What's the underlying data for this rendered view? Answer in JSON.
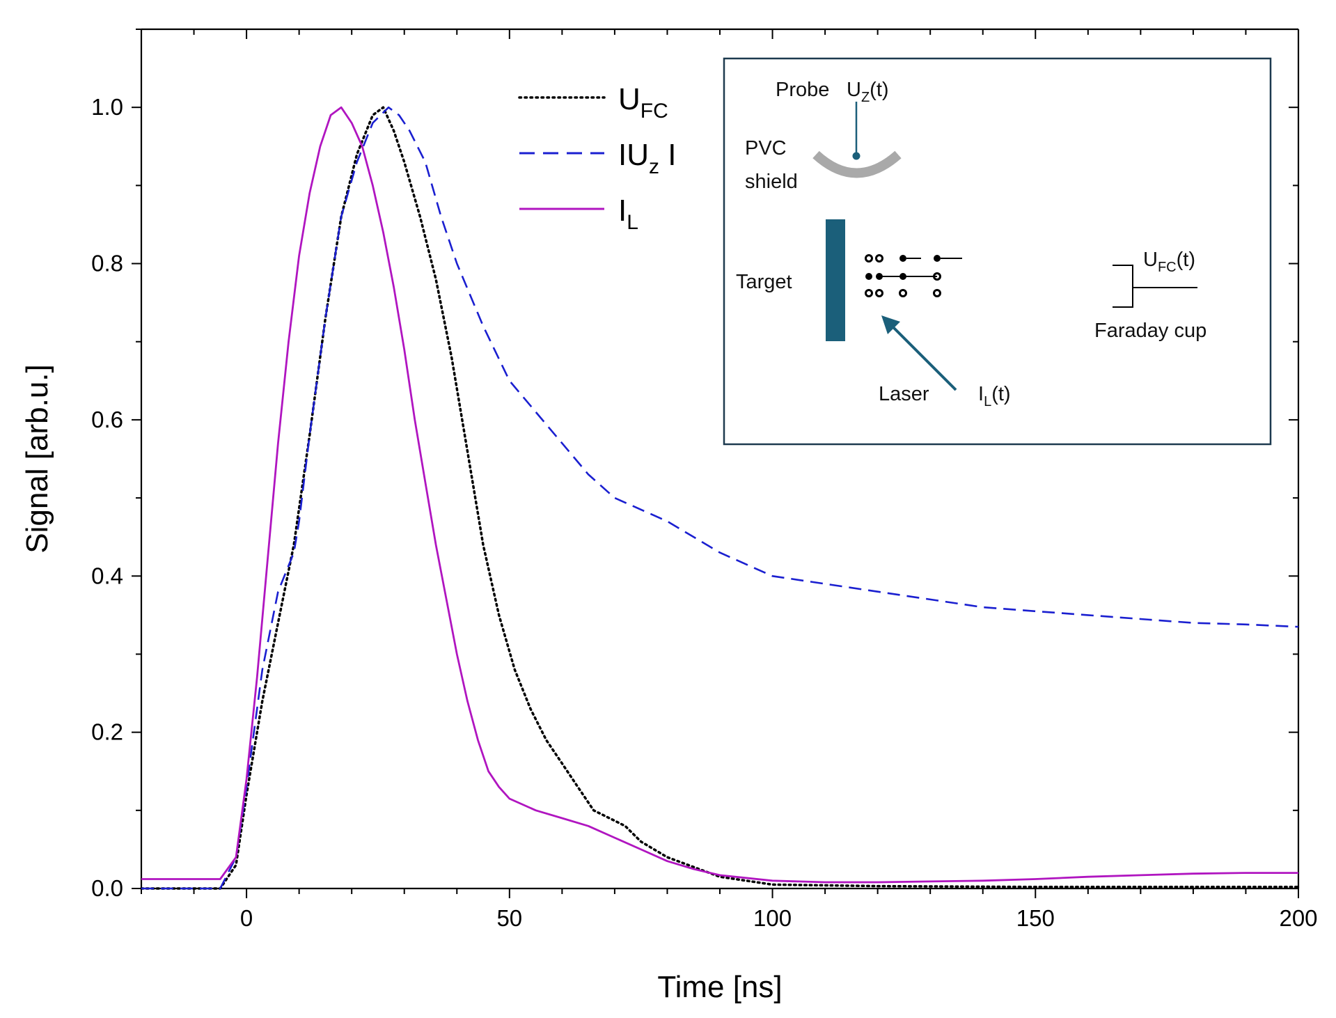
{
  "chart_data": {
    "type": "line",
    "title": "",
    "xlabel": "Time [ns]",
    "ylabel": "Signal [arb.u.]",
    "xlim": [
      -20,
      200
    ],
    "ylim": [
      0,
      1.1
    ],
    "x_ticks": [
      "0",
      "50",
      "100",
      "150",
      "200"
    ],
    "y_ticks": [
      "0.0",
      "0.2",
      "0.4",
      "0.6",
      "0.8",
      "1.0"
    ],
    "legend_position": "top-center",
    "series": [
      {
        "name": "U_FC",
        "legend": {
          "main": "U",
          "sub": "FC",
          "tail": ""
        },
        "style": "dotted",
        "color": "#000000",
        "x": [
          -20,
          -5,
          -2,
          0,
          3,
          6,
          9,
          12,
          15,
          18,
          21,
          24,
          26,
          28,
          30,
          33,
          36,
          39,
          42,
          45,
          48,
          51,
          54,
          57,
          60,
          63,
          66,
          69,
          72,
          75,
          80,
          90,
          100,
          120,
          150,
          200
        ],
        "y": [
          0.0,
          0.0,
          0.03,
          0.12,
          0.24,
          0.34,
          0.44,
          0.58,
          0.73,
          0.86,
          0.94,
          0.99,
          1.0,
          0.97,
          0.93,
          0.86,
          0.78,
          0.68,
          0.56,
          0.44,
          0.35,
          0.28,
          0.23,
          0.19,
          0.16,
          0.13,
          0.1,
          0.09,
          0.08,
          0.06,
          0.04,
          0.015,
          0.005,
          0.003,
          0.002,
          0.002
        ]
      },
      {
        "name": "|U_z|",
        "legend": {
          "main": "IU",
          "sub": "z",
          "tail": " I"
        },
        "style": "dashed",
        "color": "#1a1fd0",
        "x": [
          -20,
          -5,
          -2,
          0,
          3,
          6,
          9,
          10,
          12,
          15,
          18,
          21,
          24,
          27,
          29,
          31,
          34,
          37,
          40,
          45,
          50,
          55,
          60,
          65,
          70,
          80,
          90,
          100,
          110,
          120,
          130,
          140,
          150,
          160,
          170,
          180,
          190,
          200
        ],
        "y": [
          0.0,
          0.0,
          0.04,
          0.13,
          0.28,
          0.38,
          0.43,
          0.47,
          0.58,
          0.73,
          0.86,
          0.93,
          0.98,
          1.0,
          0.99,
          0.97,
          0.93,
          0.86,
          0.8,
          0.72,
          0.65,
          0.61,
          0.57,
          0.53,
          0.5,
          0.47,
          0.43,
          0.4,
          0.39,
          0.38,
          0.37,
          0.36,
          0.355,
          0.35,
          0.345,
          0.34,
          0.338,
          0.335
        ]
      },
      {
        "name": "I_L",
        "legend": {
          "main": "I",
          "sub": "L",
          "tail": ""
        },
        "style": "solid",
        "color": "#b015c0",
        "x": [
          -20,
          -5,
          -2,
          0,
          2,
          4,
          6,
          8,
          10,
          12,
          14,
          16,
          18,
          20,
          22,
          24,
          26,
          28,
          30,
          32,
          34,
          36,
          38,
          40,
          42,
          44,
          46,
          48,
          50,
          55,
          60,
          65,
          70,
          75,
          80,
          85,
          90,
          100,
          110,
          120,
          130,
          140,
          150,
          160,
          170,
          180,
          190,
          200
        ],
        "y": [
          0.012,
          0.012,
          0.04,
          0.14,
          0.27,
          0.42,
          0.57,
          0.7,
          0.81,
          0.89,
          0.95,
          0.99,
          1.0,
          0.98,
          0.95,
          0.9,
          0.84,
          0.77,
          0.69,
          0.6,
          0.52,
          0.44,
          0.37,
          0.3,
          0.24,
          0.19,
          0.15,
          0.13,
          0.115,
          0.1,
          0.09,
          0.08,
          0.065,
          0.05,
          0.035,
          0.025,
          0.017,
          0.01,
          0.008,
          0.008,
          0.009,
          0.01,
          0.012,
          0.015,
          0.017,
          0.019,
          0.02,
          0.02
        ]
      }
    ],
    "inset": {
      "probe_label": "Probe",
      "probe_signal": {
        "main": "U",
        "sub": "Z",
        "tail": "(t)"
      },
      "shield_label_1": "PVC",
      "shield_label_2": "shield",
      "target_label": "Target",
      "faraday_signal": {
        "main": "U",
        "sub": "FC",
        "tail": "(t)"
      },
      "faraday_label": "Faraday cup",
      "laser_label": "Laser",
      "laser_signal": {
        "main": "I",
        "sub": "L",
        "tail": "(t)"
      },
      "target_color": "#1b5f7a",
      "shield_color": "#a9a9a9"
    }
  }
}
